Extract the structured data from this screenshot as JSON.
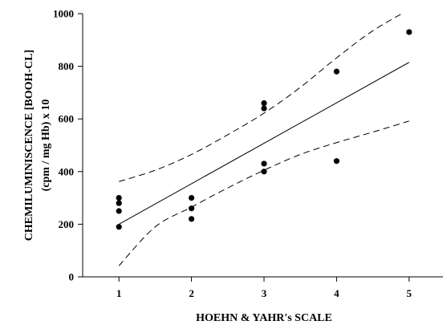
{
  "chart_data": {
    "type": "scatter",
    "title": "",
    "xlabel": "HOEHN & YAHR's SCALE",
    "ylabel_lines": [
      "CHEMILUMINISCENCE [BOOH-CL]",
      "(cpm / mg Hb) x 10"
    ],
    "xlim": [
      0.5,
      5.5
    ],
    "ylim": [
      0,
      1000
    ],
    "x_ticks": [
      1,
      2,
      3,
      4,
      5
    ],
    "y_ticks": [
      0,
      200,
      400,
      600,
      800,
      1000
    ],
    "grid": false,
    "points": [
      {
        "x": 1,
        "y": 300
      },
      {
        "x": 1,
        "y": 280
      },
      {
        "x": 1,
        "y": 250
      },
      {
        "x": 1,
        "y": 190
      },
      {
        "x": 2,
        "y": 300
      },
      {
        "x": 2,
        "y": 260
      },
      {
        "x": 2,
        "y": 220
      },
      {
        "x": 3,
        "y": 660
      },
      {
        "x": 3,
        "y": 640
      },
      {
        "x": 3,
        "y": 430
      },
      {
        "x": 3,
        "y": 400
      },
      {
        "x": 4,
        "y": 780
      },
      {
        "x": 4,
        "y": 440
      },
      {
        "x": 5,
        "y": 930
      }
    ],
    "regression_line": {
      "style": "solid",
      "x": [
        1,
        5
      ],
      "y": [
        200,
        815
      ]
    },
    "confidence_upper": {
      "style": "dashed",
      "x": [
        1,
        1.5,
        2,
        2.5,
        3,
        3.5,
        4,
        4.5,
        5
      ],
      "y": [
        362,
        405,
        465,
        540,
        622,
        720,
        832,
        935,
        1015
      ]
    },
    "confidence_lower": {
      "style": "dashed",
      "x": [
        1,
        1.5,
        2,
        2.5,
        3,
        3.5,
        4,
        4.5,
        5
      ],
      "y": [
        42,
        190,
        265,
        338,
        405,
        465,
        510,
        550,
        592
      ]
    },
    "colors": {
      "points": "#000000",
      "lines": "#000000",
      "axis": "#000000"
    }
  }
}
